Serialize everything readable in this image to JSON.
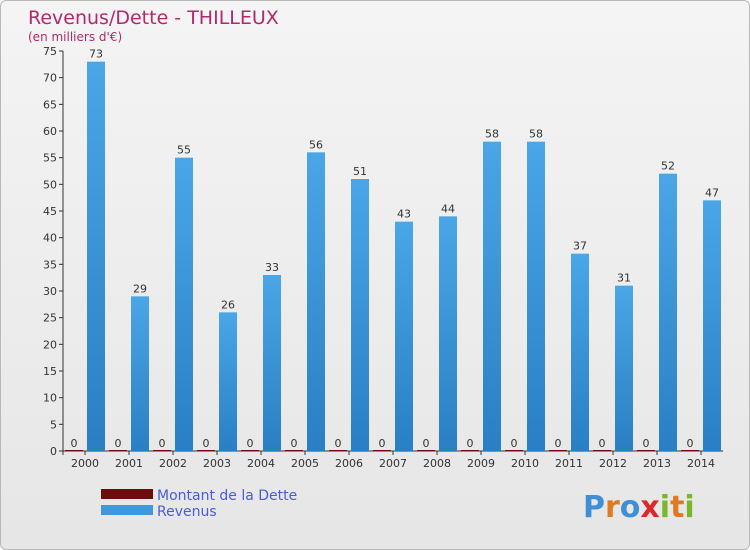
{
  "chart_data": {
    "type": "bar",
    "title": "Revenus/Dette - THILLEUX",
    "subtitle": "(en milliers d'€)",
    "categories": [
      "2000",
      "2001",
      "2002",
      "2003",
      "2004",
      "2005",
      "2006",
      "2007",
      "2008",
      "2009",
      "2010",
      "2011",
      "2012",
      "2013",
      "2014"
    ],
    "series": [
      {
        "name": "Montant de la Dette",
        "color": "#6b0d0d",
        "values": [
          0,
          0,
          0,
          0,
          0,
          0,
          0,
          0,
          0,
          0,
          0,
          0,
          0,
          0,
          0
        ]
      },
      {
        "name": "Revenus",
        "color": "#3f98db",
        "values": [
          73,
          29,
          55,
          26,
          33,
          56,
          51,
          43,
          44,
          58,
          58,
          37,
          31,
          52,
          47
        ]
      }
    ],
    "ylim": [
      0,
      75
    ],
    "yticks": [
      0,
      5,
      10,
      15,
      20,
      25,
      30,
      35,
      40,
      45,
      50,
      55,
      60,
      65,
      70,
      75
    ],
    "grid": false,
    "legend_position": "bottom-left"
  },
  "logo": {
    "text": "Proxiti",
    "icon": "proxiti-logo"
  }
}
